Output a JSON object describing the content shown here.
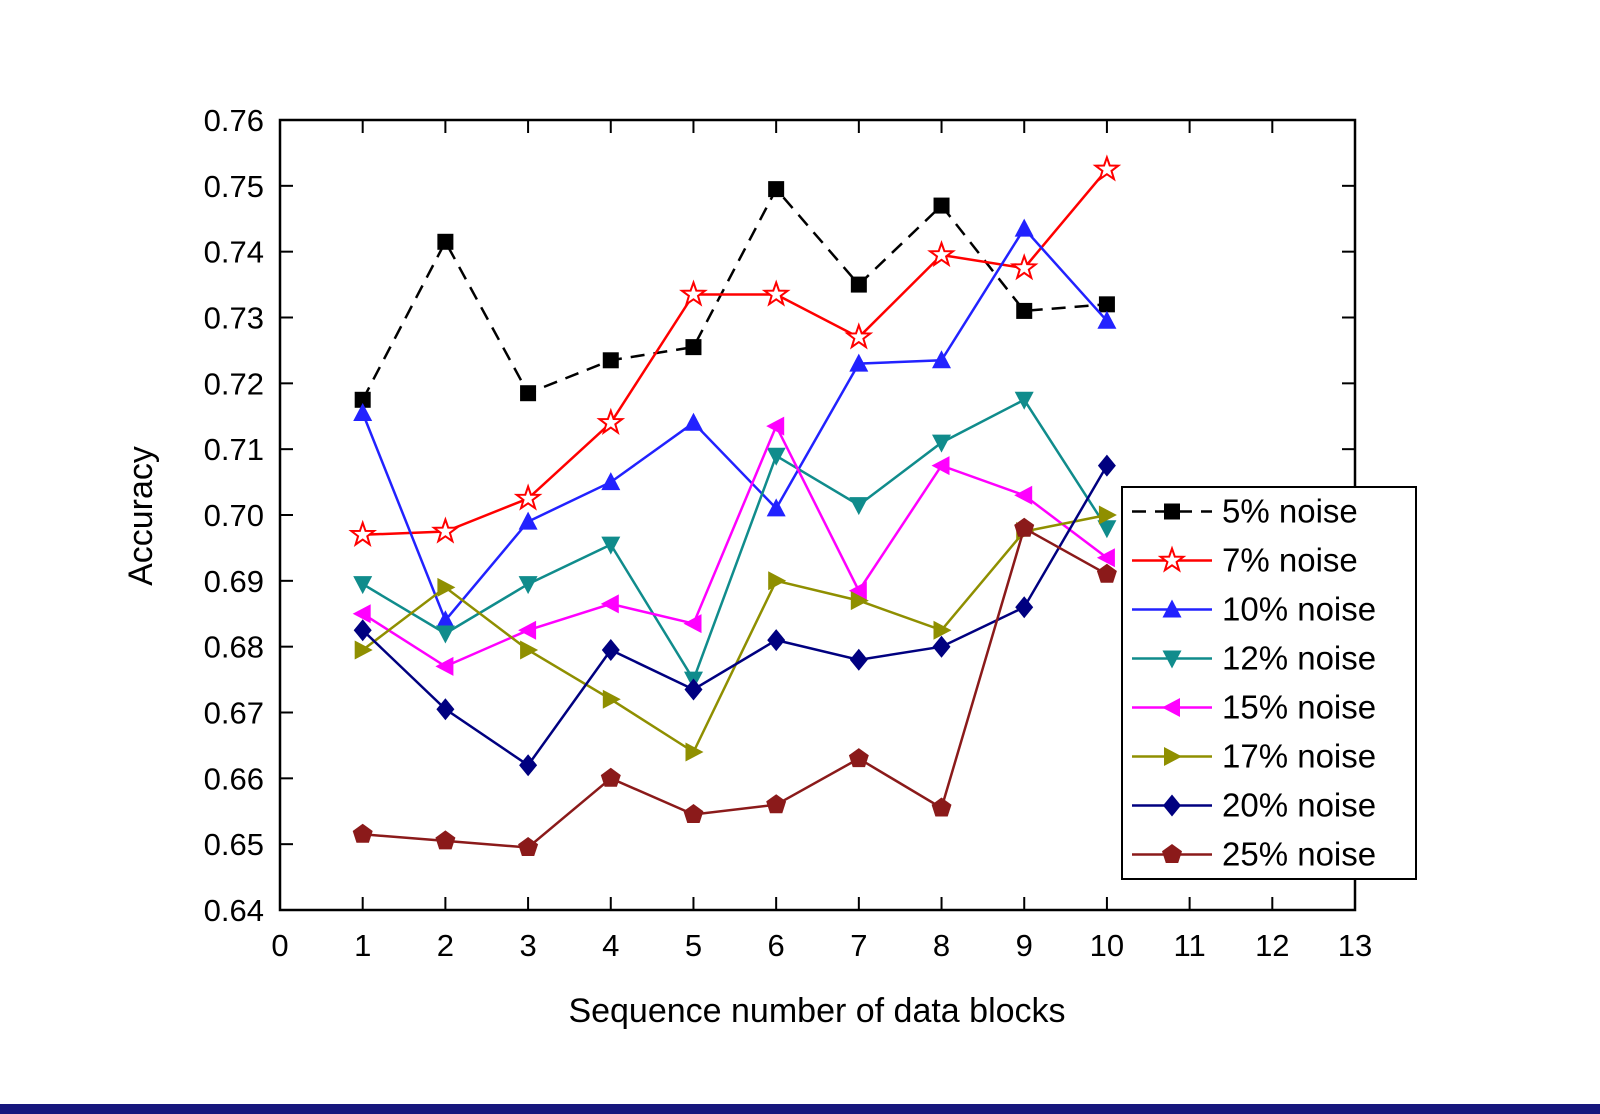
{
  "page": {
    "background": "#ffffff",
    "bottom_bar_color": "#16167d"
  },
  "chart_data": {
    "type": "line",
    "title": "",
    "xlabel": "Sequence number of data blocks",
    "ylabel": "Accuracy",
    "xlim": [
      0,
      13
    ],
    "ylim": [
      0.64,
      0.76
    ],
    "xticks": [
      0,
      1,
      2,
      3,
      4,
      5,
      6,
      7,
      8,
      9,
      10,
      11,
      12,
      13
    ],
    "yticks": [
      0.64,
      0.65,
      0.66,
      0.67,
      0.68,
      0.69,
      0.7,
      0.71,
      0.72,
      0.73,
      0.74,
      0.75,
      0.76
    ],
    "grid": false,
    "legend": {
      "position": "right-middle",
      "background": "#ffffff",
      "border_color": "#000000"
    },
    "x": [
      1,
      2,
      3,
      4,
      5,
      6,
      7,
      8,
      9,
      10
    ],
    "series": [
      {
        "name": "5% noise",
        "color": "#000000",
        "marker": "square",
        "line": "dashed",
        "values": [
          0.7175,
          0.7415,
          0.7185,
          0.7235,
          0.7255,
          0.7495,
          0.735,
          0.747,
          0.731,
          0.732
        ]
      },
      {
        "name": "7% noise",
        "color": "#ff0000",
        "marker": "star",
        "line": "solid",
        "values": [
          0.697,
          0.6975,
          0.7025,
          0.714,
          0.7335,
          0.7335,
          0.727,
          0.7395,
          0.7375,
          0.7525
        ]
      },
      {
        "name": "10% noise",
        "color": "#2222ff",
        "marker": "triangle-up",
        "line": "solid",
        "values": [
          0.7155,
          0.684,
          0.699,
          0.705,
          0.714,
          0.701,
          0.723,
          0.7235,
          0.7435,
          0.7295
        ]
      },
      {
        "name": "12% noise",
        "color": "#108c8c",
        "marker": "triangle-down",
        "line": "solid",
        "values": [
          0.6895,
          0.682,
          0.6895,
          0.6955,
          0.675,
          0.709,
          0.7015,
          0.711,
          0.7175,
          0.698
        ]
      },
      {
        "name": "15% noise",
        "color": "#ff00ff",
        "marker": "triangle-left",
        "line": "solid",
        "values": [
          0.685,
          0.677,
          0.6825,
          0.6865,
          0.6835,
          0.7135,
          0.6885,
          0.7075,
          0.703,
          0.6935
        ]
      },
      {
        "name": "17% noise",
        "color": "#8f8f00",
        "marker": "triangle-right",
        "line": "solid",
        "values": [
          0.6795,
          0.689,
          0.6795,
          0.672,
          0.664,
          0.69,
          0.687,
          0.6825,
          0.6975,
          0.7
        ]
      },
      {
        "name": "20% noise",
        "color": "#000080",
        "marker": "diamond",
        "line": "solid",
        "values": [
          0.6825,
          0.6705,
          0.662,
          0.6795,
          0.6735,
          0.681,
          0.678,
          0.68,
          0.686,
          0.7075
        ]
      },
      {
        "name": "25% noise",
        "color": "#8b1a1a",
        "marker": "pentagon",
        "line": "solid",
        "values": [
          0.6515,
          0.6505,
          0.6495,
          0.66,
          0.6545,
          0.656,
          0.663,
          0.6555,
          0.698,
          0.691
        ]
      }
    ]
  }
}
